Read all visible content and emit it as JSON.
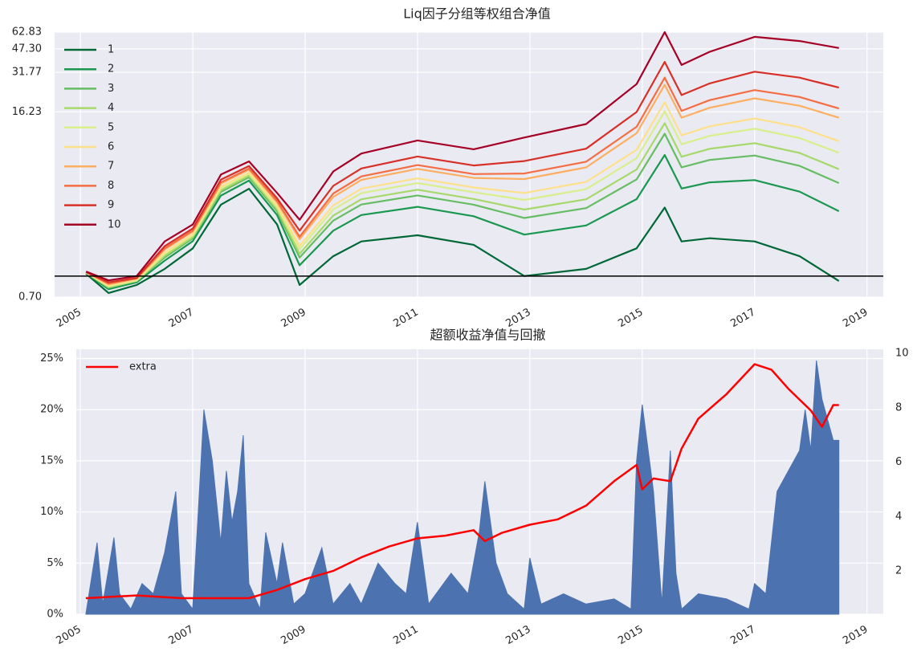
{
  "chart_data": [
    {
      "type": "line",
      "title": "Liq因子分组等权组合净值",
      "x": [
        2005.1,
        2005.5,
        2006.0,
        2006.5,
        2007.0,
        2007.5,
        2008.0,
        2008.5,
        2008.9,
        2009.5,
        2010.0,
        2011.0,
        2012.0,
        2012.9,
        2014.0,
        2014.9,
        2015.4,
        2015.7,
        2016.2,
        2017.0,
        2017.8,
        2018.5
      ],
      "series": [
        {
          "name": "1",
          "color": "#006837",
          "values": [
            1.04,
            0.75,
            0.86,
            1.13,
            1.6,
            3.36,
            4.4,
            2.4,
            0.86,
            1.4,
            1.8,
            2.0,
            1.7,
            1.0,
            1.13,
            1.6,
            3.2,
            1.8,
            1.9,
            1.8,
            1.4,
            0.92
          ]
        },
        {
          "name": "2",
          "color": "#1a9850",
          "values": [
            1.05,
            0.8,
            0.9,
            1.3,
            1.81,
            3.92,
            5.06,
            2.82,
            1.2,
            2.16,
            2.82,
            3.24,
            2.76,
            2.02,
            2.36,
            3.69,
            7.81,
            4.42,
            4.91,
            5.1,
            4.19,
            3.01
          ]
        },
        {
          "name": "3",
          "color": "#66bd63",
          "values": [
            1.06,
            0.82,
            0.92,
            1.37,
            1.9,
            4.17,
            5.35,
            3.0,
            1.37,
            2.56,
            3.37,
            3.93,
            3.36,
            2.68,
            3.17,
            5.16,
            11.2,
            6.33,
            7.18,
            7.74,
            6.49,
            4.85
          ]
        },
        {
          "name": "4",
          "color": "#a6d96a",
          "values": [
            1.06,
            0.83,
            0.92,
            1.41,
            1.94,
            4.29,
            5.5,
            3.1,
            1.46,
            2.79,
            3.68,
            4.33,
            3.7,
            3.09,
            3.68,
            6.1,
            13.4,
            7.58,
            8.68,
            9.54,
            8.08,
            6.14
          ]
        },
        {
          "name": "5",
          "color": "#d9ef8b",
          "values": [
            1.06,
            0.84,
            0.93,
            1.46,
            2.0,
            4.45,
            5.68,
            3.22,
            1.58,
            3.09,
            4.09,
            4.85,
            4.15,
            3.64,
            4.37,
            7.41,
            16.4,
            9.36,
            10.8,
            12.2,
            10.4,
            8.1
          ]
        },
        {
          "name": "6",
          "color": "#fee08b",
          "values": [
            1.06,
            0.85,
            0.94,
            1.49,
            2.04,
            4.57,
            5.81,
            3.31,
            1.67,
            3.32,
            4.41,
            5.25,
            4.5,
            4.1,
            4.94,
            8.52,
            19.1,
            10.9,
            12.7,
            14.5,
            12.5,
            9.87
          ]
        },
        {
          "name": "7",
          "color": "#fdae61",
          "values": [
            1.07,
            0.87,
            0.96,
            1.57,
            2.13,
            4.81,
            6.09,
            3.49,
            1.87,
            3.83,
            5.11,
            6.17,
            5.29,
            5.19,
            6.32,
            11.3,
            25.7,
            14.7,
            17.4,
            20.4,
            18.0,
            14.7
          ]
        },
        {
          "name": "8",
          "color": "#f46d43",
          "values": [
            1.07,
            0.88,
            0.96,
            1.6,
            2.16,
            4.9,
            6.2,
            3.57,
            1.95,
            4.06,
            5.43,
            6.58,
            5.65,
            5.7,
            6.97,
            12.6,
            29.0,
            16.5,
            19.8,
            23.5,
            20.9,
            17.2
          ]
        },
        {
          "name": "9",
          "color": "#d73027",
          "values": [
            1.07,
            0.9,
            0.97,
            1.66,
            2.24,
            5.13,
            6.47,
            3.74,
            2.16,
            4.62,
            6.21,
            7.61,
            6.53,
            7.04,
            8.69,
            16.2,
            37.9,
            21.6,
            26.3,
            32.1,
            29.0,
            24.5
          ]
        },
        {
          "name": "10",
          "color": "#a50026",
          "values": [
            1.08,
            0.93,
            1.0,
            1.8,
            2.4,
            5.6,
            7.0,
            4.1,
            2.6,
            5.9,
            8.0,
            10.0,
            8.6,
            10.5,
            13.2,
            26,
            62.8,
            36,
            45,
            58,
            54,
            48
          ]
        }
      ],
      "log_scale": true,
      "reference_line": 1,
      "xlim": [
        2004.54,
        2019.29
      ],
      "xticks": [
        2005,
        2007,
        2009,
        2011,
        2013,
        2015,
        2017,
        2019
      ],
      "ylim": [
        0.7,
        62.83
      ],
      "yticks": [
        {
          "value": 0.7,
          "label": "0.70"
        },
        16.23,
        31.77,
        {
          "value": 47.3,
          "label": "47.30"
        },
        62.83
      ],
      "grid": true,
      "legend": "upper left"
    },
    {
      "type": "area_line",
      "title": "超额收益净值与回撤",
      "series": [
        {
          "kind": "area",
          "color": "#4c72b0",
          "x": [
            2005.1,
            2005.3,
            2005.4,
            2005.6,
            2005.7,
            2005.9,
            2006.1,
            2006.3,
            2006.5,
            2006.7,
            2006.8,
            2007.0,
            2007.1,
            2007.2,
            2007.35,
            2007.5,
            2007.6,
            2007.7,
            2007.8,
            2007.9,
            2008.0,
            2008.2,
            2008.3,
            2008.5,
            2008.6,
            2008.8,
            2009.0,
            2009.3,
            2009.5,
            2009.8,
            2010.0,
            2010.3,
            2010.6,
            2010.8,
            2011.0,
            2011.2,
            2011.6,
            2011.9,
            2012.1,
            2012.2,
            2012.4,
            2012.6,
            2012.9,
            2013.0,
            2013.2,
            2013.6,
            2014.0,
            2014.5,
            2014.8,
            2014.9,
            2015.0,
            2015.2,
            2015.35,
            2015.5,
            2015.6,
            2015.7,
            2016.0,
            2016.5,
            2016.9,
            2017.0,
            2017.2,
            2017.4,
            2017.6,
            2017.8,
            2017.9,
            2018.0,
            2018.1,
            2018.2,
            2018.4,
            2018.5
          ],
          "values": [
            0,
            7,
            1,
            7.5,
            2,
            0.5,
            3,
            2,
            6,
            12,
            2,
            0.5,
            10,
            20,
            15,
            7,
            14,
            9,
            12,
            17.5,
            3,
            0.5,
            8,
            3,
            7,
            1,
            2,
            6.5,
            1,
            3,
            1,
            5,
            3,
            2,
            9,
            1,
            4,
            2,
            8,
            13,
            5,
            2,
            0.5,
            5.5,
            1,
            2,
            1,
            1.5,
            0.5,
            15,
            20.5,
            12,
            1,
            16,
            4,
            0.5,
            2,
            1.5,
            0.5,
            3,
            2,
            12,
            14,
            16,
            20,
            16,
            24.8,
            21,
            17,
            17
          ]
        },
        {
          "kind": "line",
          "name": "extra",
          "color": "#ff0000",
          "axis": "y2",
          "x": [
            2005.1,
            2006.0,
            2006.8,
            2007.5,
            2008.0,
            2008.5,
            2009.0,
            2009.5,
            2010.0,
            2010.5,
            2011.0,
            2011.5,
            2012.0,
            2012.2,
            2012.5,
            2013.0,
            2013.5,
            2014.0,
            2014.5,
            2014.9,
            2015.0,
            2015.2,
            2015.5,
            2015.7,
            2016.0,
            2016.5,
            2017.0,
            2017.3,
            2017.6,
            2018.0,
            2018.2,
            2018.4,
            2018.5
          ],
          "values": [
            1.0,
            1.1,
            1.0,
            1.0,
            1.0,
            1.3,
            1.7,
            2.0,
            2.5,
            2.9,
            3.2,
            3.3,
            3.5,
            3.1,
            3.4,
            3.7,
            3.9,
            4.4,
            5.3,
            5.9,
            5.0,
            5.4,
            5.3,
            6.5,
            7.6,
            8.5,
            9.6,
            9.4,
            8.7,
            7.9,
            7.3,
            8.1,
            8.1
          ]
        }
      ],
      "xlim": [
        2004.93,
        2019.29
      ],
      "xticks": [
        2005,
        2007,
        2009,
        2011,
        2013,
        2015,
        2017,
        2019
      ],
      "ylim": [
        0,
        25.9
      ],
      "yticks": [
        {
          "value": 0,
          "label": "0%"
        },
        {
          "value": 5,
          "label": "5%"
        },
        {
          "value": 10,
          "label": "10%"
        },
        {
          "value": 15,
          "label": "15%"
        },
        {
          "value": 20,
          "label": "20%"
        },
        {
          "value": 25,
          "label": "25%"
        }
      ],
      "y2lim": [
        0.41,
        10.15
      ],
      "y2ticks": [
        2,
        4,
        6,
        8,
        10
      ],
      "grid": true,
      "legend": "upper left"
    }
  ]
}
